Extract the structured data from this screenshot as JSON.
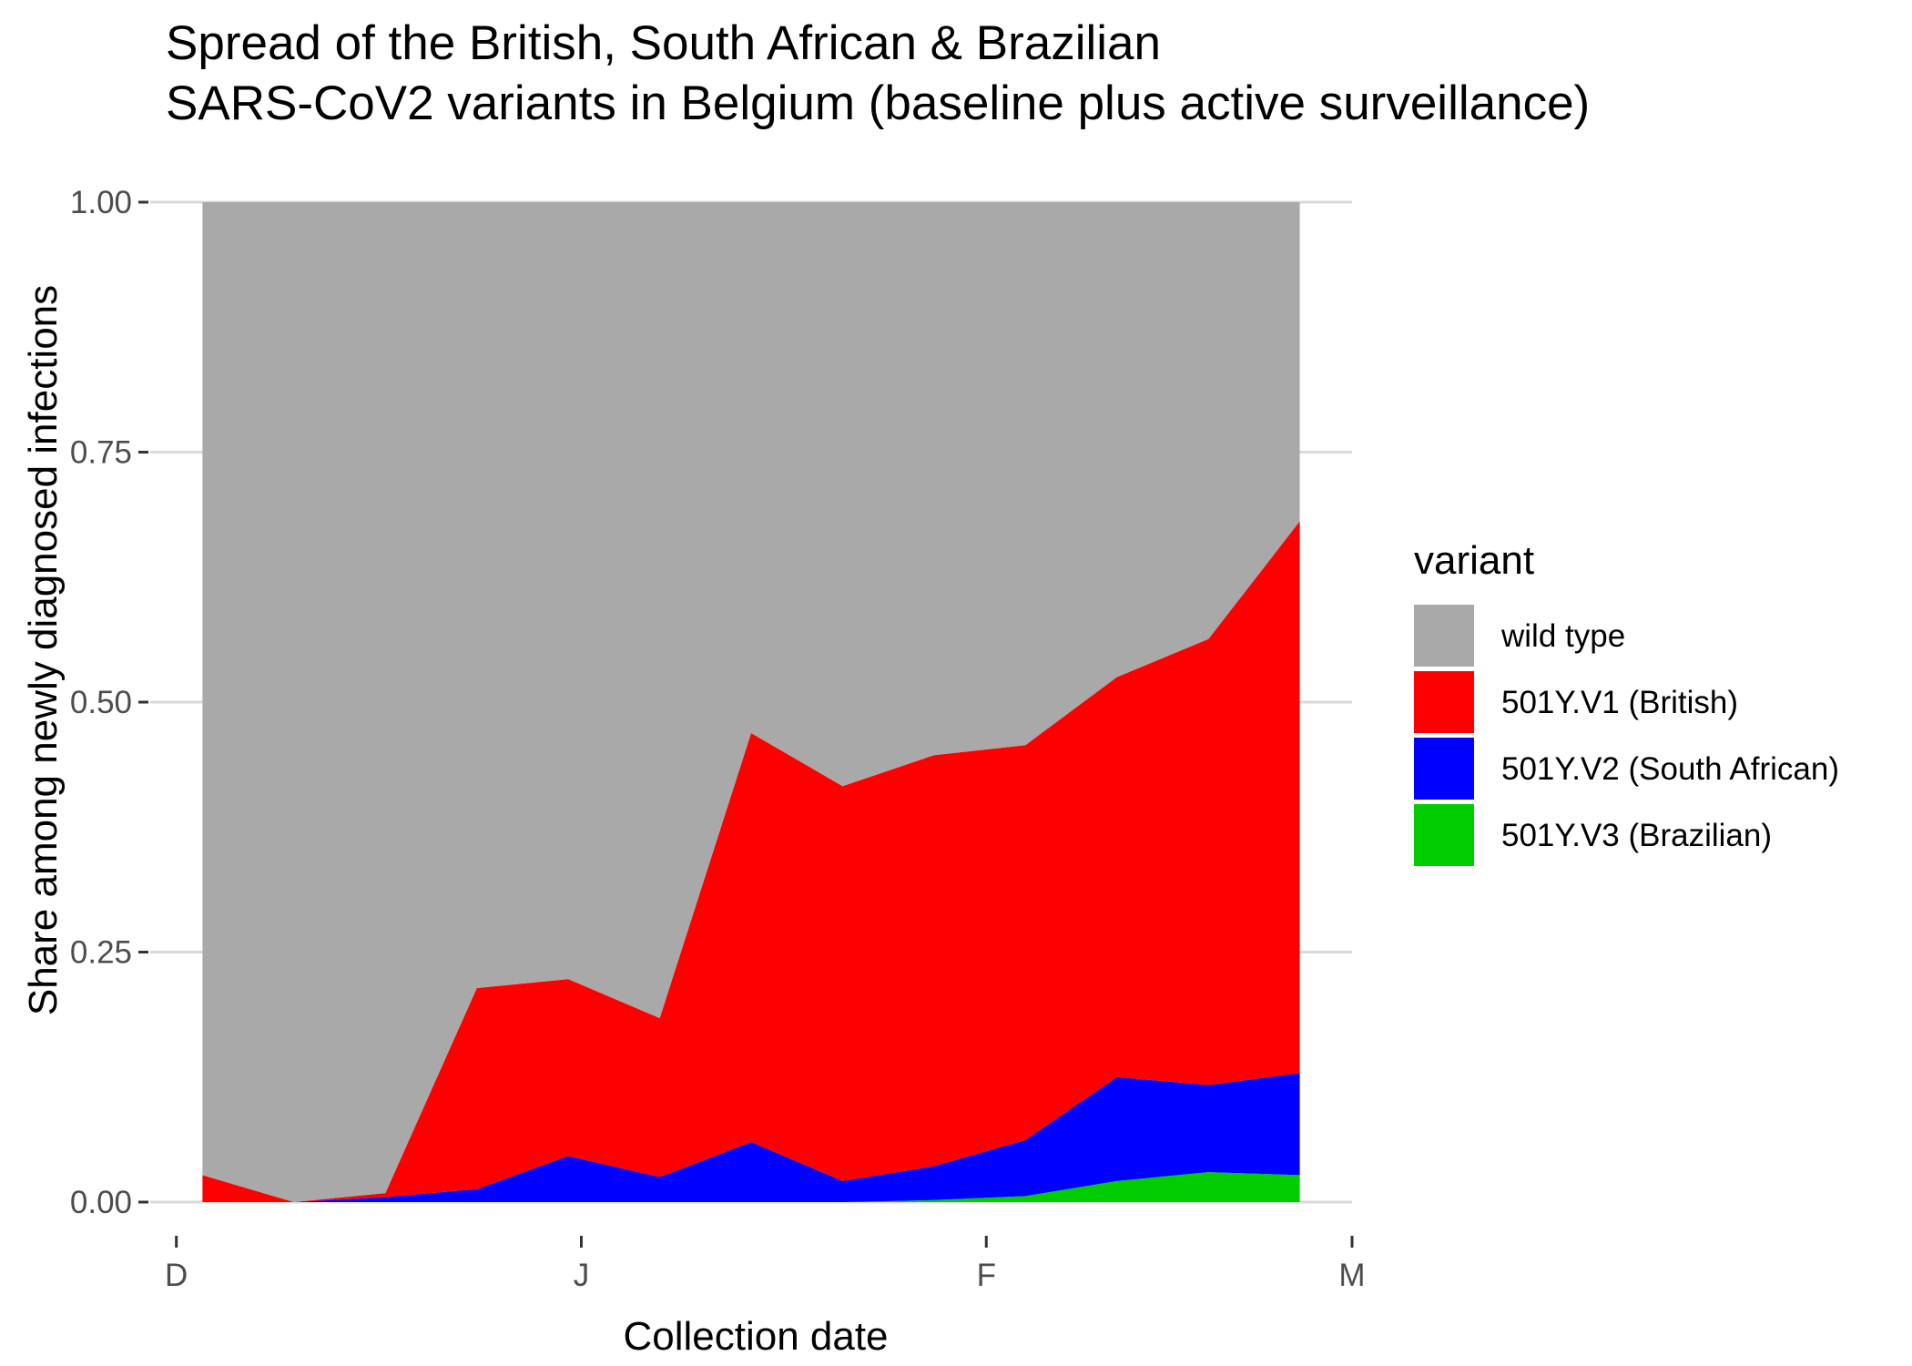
{
  "chart_data": {
    "type": "area",
    "stacked": "fill",
    "title_lines": [
      "Spread of the British, South African & Brazilian",
      "SARS-CoV2 variants in Belgium (baseline plus active surveillance)"
    ],
    "xlabel": "Collection date",
    "ylabel": "Share among newly diagnosed infections",
    "x_ticks": [
      "D",
      "J",
      "F",
      "M"
    ],
    "x_tick_dates": [
      "2020-12-01",
      "2021-01-01",
      "2021-02-01",
      "2021-03-01"
    ],
    "y_ticks": [
      "0.00",
      "0.25",
      "0.50",
      "0.75",
      "1.00"
    ],
    "y_tick_values": [
      0,
      0.25,
      0.5,
      0.75,
      1.0
    ],
    "ylim": [
      0,
      1
    ],
    "grid": true,
    "legend": {
      "title": "variant",
      "placement": "right",
      "items": [
        {
          "label": "wild type",
          "color": "#A9A9A9"
        },
        {
          "label": "501Y.V1 (British)",
          "color": "#FF0000"
        },
        {
          "label": "501Y.V2 (South African)",
          "color": "#0000FF"
        },
        {
          "label": "501Y.V3 (Brazilian)",
          "color": "#00CC00"
        }
      ]
    },
    "x": [
      "2020-12-03",
      "2020-12-10",
      "2020-12-17",
      "2020-12-24",
      "2020-12-31",
      "2021-01-07",
      "2021-01-14",
      "2021-01-21",
      "2021-01-28",
      "2021-02-04",
      "2021-02-11",
      "2021-02-18",
      "2021-02-25"
    ],
    "series": [
      {
        "name": "501Y.V3 (Brazilian)",
        "color": "#00CC00",
        "values": [
          0,
          0,
          0,
          0,
          0,
          0,
          0,
          0,
          0.002,
          0.006,
          0.021,
          0.03,
          0.027
        ]
      },
      {
        "name": "501Y.V2 (South African)",
        "color": "#0000FF",
        "values": [
          0,
          0,
          0.005,
          0.013,
          0.046,
          0.025,
          0.06,
          0.021,
          0.034,
          0.056,
          0.104,
          0.087,
          0.102
        ]
      },
      {
        "name": "501Y.V1 (British)",
        "color": "#FF0000",
        "values": [
          0.027,
          0,
          0.004,
          0.201,
          0.177,
          0.159,
          0.409,
          0.395,
          0.411,
          0.395,
          0.4,
          0.446,
          0.552
        ]
      },
      {
        "name": "wild type",
        "color": "#A9A9A9",
        "values": [
          0.973,
          1.0,
          0.991,
          0.786,
          0.777,
          0.816,
          0.531,
          0.584,
          0.553,
          0.543,
          0.475,
          0.437,
          0.319
        ]
      }
    ]
  }
}
